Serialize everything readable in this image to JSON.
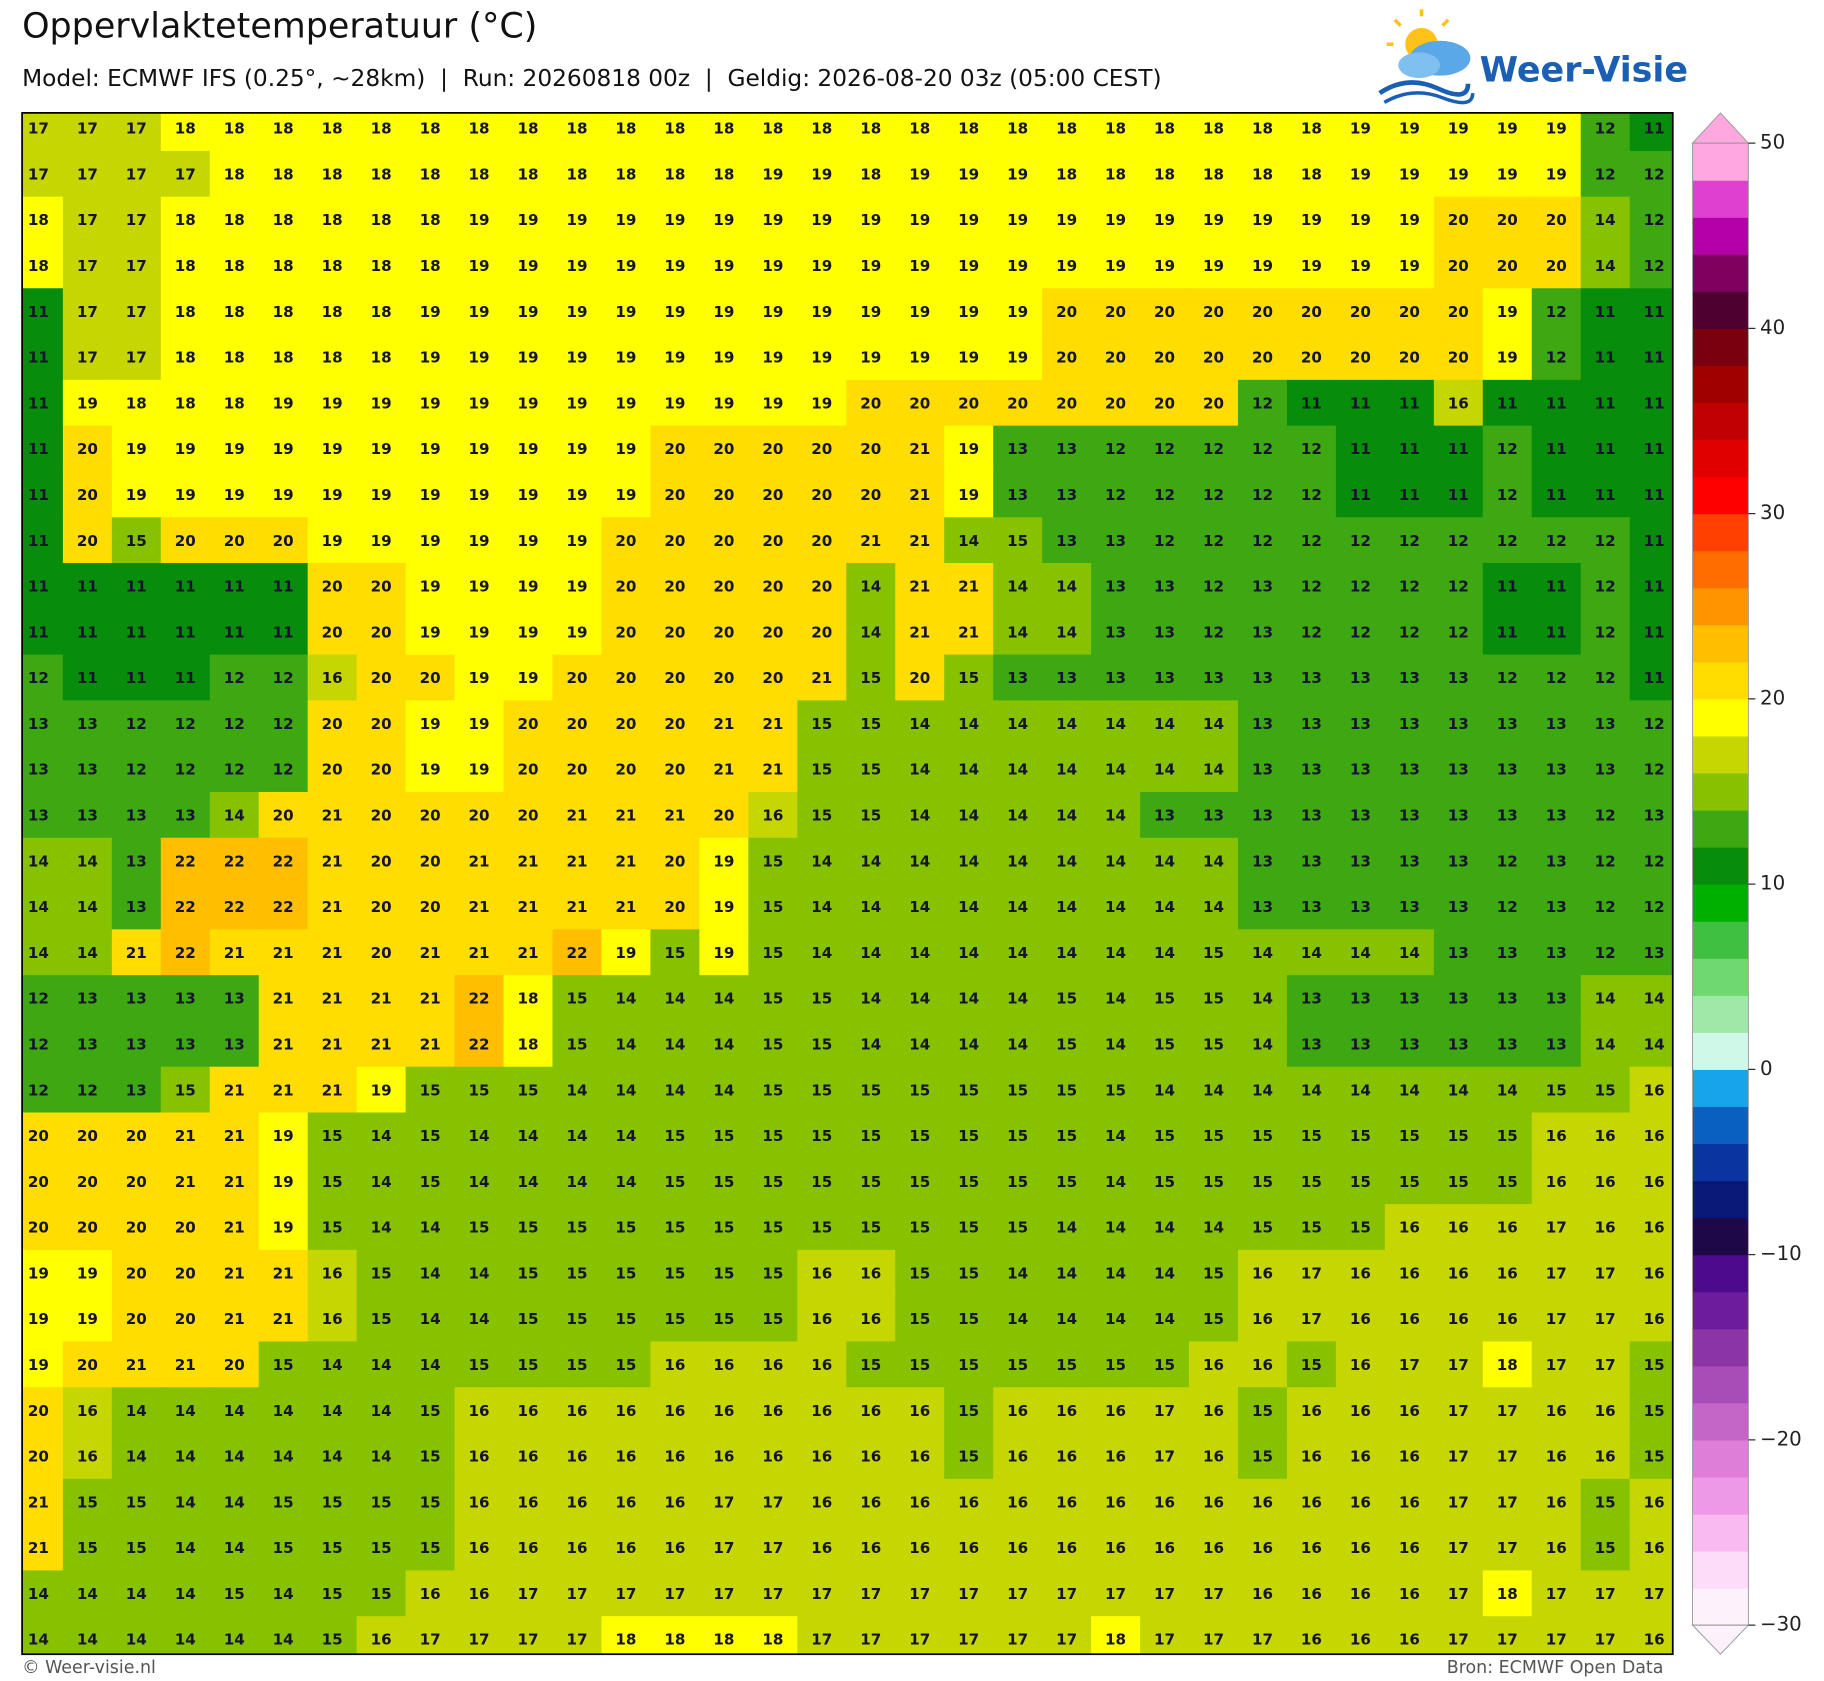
{
  "title": "Oppervlaktetemperatuur (°C)",
  "subtitle": "Model: ECMWF IFS (0.25°, ~28km)  |  Run: 20260818 00z  |  Geldig: 2026-08-20 03z (05:00 CEST)",
  "logo": "Weer-Visie",
  "footer_left": "© Weer-visie.nl",
  "footer_right": "Bron: ECMWF Open Data",
  "grid": {
    "values": [
      [
        17,
        17,
        17,
        18,
        18,
        18,
        18,
        18,
        18,
        18,
        18,
        18,
        18,
        18,
        18,
        18,
        18,
        18,
        18,
        18,
        18,
        18,
        18,
        18,
        18,
        18,
        18,
        19,
        19,
        19,
        19,
        19,
        12,
        11
      ],
      [
        17,
        17,
        17,
        17,
        18,
        18,
        18,
        18,
        18,
        18,
        18,
        18,
        18,
        18,
        18,
        19,
        19,
        18,
        19,
        19,
        19,
        18,
        18,
        18,
        18,
        18,
        18,
        19,
        19,
        19,
        19,
        19,
        12,
        12
      ],
      [
        18,
        17,
        17,
        18,
        18,
        18,
        18,
        18,
        18,
        19,
        19,
        19,
        19,
        19,
        19,
        19,
        19,
        19,
        19,
        19,
        19,
        19,
        19,
        19,
        19,
        19,
        19,
        19,
        19,
        20,
        20,
        20,
        14,
        12
      ],
      [
        18,
        17,
        17,
        18,
        18,
        18,
        18,
        18,
        18,
        19,
        19,
        19,
        19,
        19,
        19,
        19,
        19,
        19,
        19,
        19,
        19,
        19,
        19,
        19,
        19,
        19,
        19,
        19,
        19,
        20,
        20,
        20,
        14,
        12
      ],
      [
        11,
        17,
        17,
        18,
        18,
        18,
        18,
        18,
        19,
        19,
        19,
        19,
        19,
        19,
        19,
        19,
        19,
        19,
        19,
        19,
        19,
        20,
        20,
        20,
        20,
        20,
        20,
        20,
        20,
        20,
        19,
        12,
        11,
        11
      ],
      [
        11,
        17,
        17,
        18,
        18,
        18,
        18,
        18,
        19,
        19,
        19,
        19,
        19,
        19,
        19,
        19,
        19,
        19,
        19,
        19,
        19,
        20,
        20,
        20,
        20,
        20,
        20,
        20,
        20,
        20,
        19,
        12,
        11,
        11
      ],
      [
        11,
        19,
        18,
        18,
        18,
        19,
        19,
        19,
        19,
        19,
        19,
        19,
        19,
        19,
        19,
        19,
        19,
        20,
        20,
        20,
        20,
        20,
        20,
        20,
        20,
        12,
        11,
        11,
        11,
        16,
        11,
        11,
        11,
        11
      ],
      [
        11,
        20,
        19,
        19,
        19,
        19,
        19,
        19,
        19,
        19,
        19,
        19,
        19,
        20,
        20,
        20,
        20,
        20,
        21,
        19,
        13,
        13,
        12,
        12,
        12,
        12,
        12,
        11,
        11,
        11,
        12,
        11,
        11,
        11
      ],
      [
        11,
        20,
        19,
        19,
        19,
        19,
        19,
        19,
        19,
        19,
        19,
        19,
        19,
        20,
        20,
        20,
        20,
        20,
        21,
        19,
        13,
        13,
        12,
        12,
        12,
        12,
        12,
        11,
        11,
        11,
        12,
        11,
        11,
        11
      ],
      [
        11,
        20,
        15,
        20,
        20,
        20,
        19,
        19,
        19,
        19,
        19,
        19,
        20,
        20,
        20,
        20,
        20,
        21,
        21,
        14,
        15,
        13,
        13,
        12,
        12,
        12,
        12,
        12,
        12,
        12,
        12,
        12,
        12,
        11
      ],
      [
        11,
        11,
        11,
        11,
        11,
        11,
        20,
        20,
        19,
        19,
        19,
        19,
        20,
        20,
        20,
        20,
        20,
        14,
        21,
        21,
        14,
        14,
        13,
        13,
        12,
        13,
        12,
        12,
        12,
        12,
        11,
        11,
        12,
        11
      ],
      [
        11,
        11,
        11,
        11,
        11,
        11,
        20,
        20,
        19,
        19,
        19,
        19,
        20,
        20,
        20,
        20,
        20,
        14,
        21,
        21,
        14,
        14,
        13,
        13,
        12,
        13,
        12,
        12,
        12,
        12,
        11,
        11,
        12,
        11
      ],
      [
        12,
        11,
        11,
        11,
        12,
        12,
        16,
        20,
        20,
        19,
        19,
        20,
        20,
        20,
        20,
        20,
        21,
        15,
        20,
        15,
        13,
        13,
        13,
        13,
        13,
        13,
        13,
        13,
        13,
        13,
        12,
        12,
        12,
        11
      ],
      [
        13,
        13,
        12,
        12,
        12,
        12,
        20,
        20,
        19,
        19,
        20,
        20,
        20,
        20,
        21,
        21,
        15,
        15,
        14,
        14,
        14,
        14,
        14,
        14,
        14,
        13,
        13,
        13,
        13,
        13,
        13,
        13,
        13,
        12
      ],
      [
        13,
        13,
        12,
        12,
        12,
        12,
        20,
        20,
        19,
        19,
        20,
        20,
        20,
        20,
        21,
        21,
        15,
        15,
        14,
        14,
        14,
        14,
        14,
        14,
        14,
        13,
        13,
        13,
        13,
        13,
        13,
        13,
        13,
        12
      ],
      [
        13,
        13,
        13,
        13,
        14,
        20,
        21,
        20,
        20,
        20,
        20,
        21,
        21,
        21,
        20,
        16,
        15,
        15,
        14,
        14,
        14,
        14,
        14,
        13,
        13,
        13,
        13,
        13,
        13,
        13,
        13,
        13,
        12,
        13
      ],
      [
        14,
        14,
        13,
        22,
        22,
        22,
        21,
        20,
        20,
        21,
        21,
        21,
        21,
        20,
        19,
        15,
        14,
        14,
        14,
        14,
        14,
        14,
        14,
        14,
        14,
        13,
        13,
        13,
        13,
        13,
        12,
        13,
        12,
        12
      ],
      [
        14,
        14,
        13,
        22,
        22,
        22,
        21,
        20,
        20,
        21,
        21,
        21,
        21,
        20,
        19,
        15,
        14,
        14,
        14,
        14,
        14,
        14,
        14,
        14,
        14,
        13,
        13,
        13,
        13,
        13,
        12,
        13,
        12,
        12
      ],
      [
        14,
        14,
        21,
        22,
        21,
        21,
        21,
        20,
        21,
        21,
        21,
        22,
        19,
        15,
        19,
        15,
        14,
        14,
        14,
        14,
        14,
        14,
        14,
        14,
        15,
        14,
        14,
        14,
        14,
        13,
        13,
        13,
        12,
        13
      ],
      [
        12,
        13,
        13,
        13,
        13,
        21,
        21,
        21,
        21,
        22,
        18,
        15,
        14,
        14,
        14,
        15,
        15,
        14,
        14,
        14,
        14,
        15,
        14,
        15,
        15,
        14,
        13,
        13,
        13,
        13,
        13,
        13,
        14,
        14
      ],
      [
        12,
        13,
        13,
        13,
        13,
        21,
        21,
        21,
        21,
        22,
        18,
        15,
        14,
        14,
        14,
        15,
        15,
        14,
        14,
        14,
        14,
        15,
        14,
        15,
        15,
        14,
        13,
        13,
        13,
        13,
        13,
        13,
        14,
        14
      ],
      [
        12,
        12,
        13,
        15,
        21,
        21,
        21,
        19,
        15,
        15,
        15,
        14,
        14,
        14,
        14,
        15,
        15,
        15,
        15,
        15,
        15,
        15,
        15,
        14,
        14,
        14,
        14,
        14,
        14,
        14,
        14,
        15,
        15,
        16
      ],
      [
        20,
        20,
        20,
        21,
        21,
        19,
        15,
        14,
        15,
        14,
        14,
        14,
        14,
        15,
        15,
        15,
        15,
        15,
        15,
        15,
        15,
        15,
        14,
        15,
        15,
        15,
        15,
        15,
        15,
        15,
        15,
        16,
        16,
        16
      ],
      [
        20,
        20,
        20,
        21,
        21,
        19,
        15,
        14,
        15,
        14,
        14,
        14,
        14,
        15,
        15,
        15,
        15,
        15,
        15,
        15,
        15,
        15,
        14,
        15,
        15,
        15,
        15,
        15,
        15,
        15,
        15,
        16,
        16,
        16
      ],
      [
        20,
        20,
        20,
        20,
        21,
        19,
        15,
        14,
        14,
        15,
        15,
        15,
        15,
        15,
        15,
        15,
        15,
        15,
        15,
        15,
        15,
        14,
        14,
        14,
        14,
        15,
        15,
        15,
        16,
        16,
        16,
        17,
        16,
        16
      ],
      [
        19,
        19,
        20,
        20,
        21,
        21,
        16,
        15,
        14,
        14,
        15,
        15,
        15,
        15,
        15,
        15,
        16,
        16,
        15,
        15,
        14,
        14,
        14,
        14,
        15,
        16,
        17,
        16,
        16,
        16,
        16,
        17,
        17,
        16
      ],
      [
        19,
        19,
        20,
        20,
        21,
        21,
        16,
        15,
        14,
        14,
        15,
        15,
        15,
        15,
        15,
        15,
        16,
        16,
        15,
        15,
        14,
        14,
        14,
        14,
        15,
        16,
        17,
        16,
        16,
        16,
        16,
        17,
        17,
        16
      ],
      [
        19,
        20,
        21,
        21,
        20,
        15,
        14,
        14,
        14,
        15,
        15,
        15,
        15,
        16,
        16,
        16,
        16,
        15,
        15,
        15,
        15,
        15,
        15,
        15,
        16,
        16,
        15,
        16,
        17,
        17,
        18,
        17,
        17,
        15
      ],
      [
        20,
        16,
        14,
        14,
        14,
        14,
        14,
        14,
        15,
        16,
        16,
        16,
        16,
        16,
        16,
        16,
        16,
        16,
        16,
        15,
        16,
        16,
        16,
        17,
        16,
        15,
        16,
        16,
        16,
        17,
        17,
        16,
        16,
        15
      ],
      [
        20,
        16,
        14,
        14,
        14,
        14,
        14,
        14,
        15,
        16,
        16,
        16,
        16,
        16,
        16,
        16,
        16,
        16,
        16,
        15,
        16,
        16,
        16,
        17,
        16,
        15,
        16,
        16,
        16,
        17,
        17,
        16,
        16,
        15
      ],
      [
        21,
        15,
        15,
        14,
        14,
        15,
        15,
        15,
        15,
        16,
        16,
        16,
        16,
        16,
        17,
        17,
        16,
        16,
        16,
        16,
        16,
        16,
        16,
        16,
        16,
        16,
        16,
        16,
        16,
        17,
        17,
        16,
        15,
        16
      ],
      [
        21,
        15,
        15,
        14,
        14,
        15,
        15,
        15,
        15,
        16,
        16,
        16,
        16,
        16,
        17,
        17,
        16,
        16,
        16,
        16,
        16,
        16,
        16,
        16,
        16,
        16,
        16,
        16,
        16,
        17,
        17,
        16,
        15,
        16
      ],
      [
        14,
        14,
        14,
        14,
        15,
        14,
        15,
        15,
        16,
        16,
        17,
        17,
        17,
        17,
        17,
        17,
        17,
        17,
        17,
        17,
        17,
        17,
        17,
        17,
        17,
        16,
        16,
        16,
        16,
        17,
        18,
        17,
        17,
        17
      ],
      [
        14,
        14,
        14,
        14,
        14,
        14,
        15,
        16,
        17,
        17,
        17,
        17,
        18,
        18,
        18,
        18,
        17,
        17,
        17,
        17,
        17,
        17,
        18,
        17,
        17,
        17,
        16,
        16,
        16,
        17,
        17,
        17,
        17,
        16
      ]
    ]
  },
  "colorbar": {
    "clim": [
      -30,
      50
    ],
    "colors": [
      "#fdf2fc",
      "#fcdcf8",
      "#f8baf0",
      "#ee98e8",
      "#de7ed8",
      "#c466c8",
      "#a84cb8",
      "#8a34a8",
      "#6c1c9c",
      "#4c0a8c",
      "#1e0848",
      "#0a1878",
      "#0a34a0",
      "#0a60c0",
      "#18a4e8",
      "#d0f8e8",
      "#a0e8a8",
      "#70d870",
      "#40c040",
      "#00b000",
      "#078c0c",
      "#3ea812",
      "#86c200",
      "#c6d600",
      "#ffff00",
      "#ffdd00",
      "#ffbe00",
      "#ff9400",
      "#ff6c00",
      "#ff4000",
      "#ff0000",
      "#e00000",
      "#c00000",
      "#a00000",
      "#7a0010",
      "#4e0030",
      "#800060",
      "#b400a8",
      "#e040d0",
      "#ffa8e0"
    ],
    "ticks": [
      50,
      40,
      30,
      20,
      10,
      0,
      {
        "value": -10,
        "label": "−10"
      },
      {
        "value": -20,
        "label": "−20"
      },
      {
        "value": -30,
        "label": "−30"
      }
    ]
  }
}
